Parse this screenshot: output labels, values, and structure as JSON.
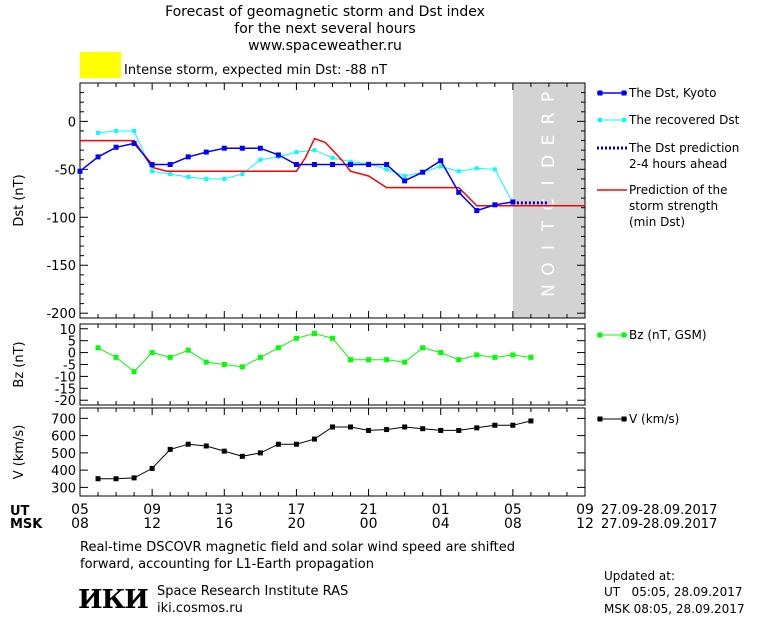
{
  "header": {
    "title_line1": "Forecast of geomagnetic storm and Dst index",
    "title_line2": "for the next several hours",
    "title_line3": "www.spaceweather.ru",
    "storm_level_color": "#ffff00",
    "storm_text": "Intense storm, expected min Dst: -88 nT"
  },
  "prediction_label": "PREDICTION",
  "legend": {
    "dst_kyoto": "The Dst, Kyoto",
    "dst_recovered": "The recovered Dst",
    "dst_prediction_1": "The Dst prediction",
    "dst_prediction_2": "2-4 hours ahead",
    "min_dst_1": "Prediction of the",
    "min_dst_2": "storm strength",
    "min_dst_3": "(min Dst)",
    "bz": "Bz (nT, GSM)",
    "v": "V (km/s)"
  },
  "colors": {
    "dst_kyoto": "#0000ff",
    "dst_recovered": "#00ffff",
    "dst_prediction": "#0000cc",
    "min_dst": "#ff0000",
    "bz": "#00ff00",
    "v": "#000000",
    "prediction_band": "#d3d3d3"
  },
  "time_axis": {
    "ut_label": "UT",
    "msk_label": "MSK",
    "ut_ticks": [
      "05",
      "09",
      "13",
      "17",
      "21",
      "01",
      "05",
      "09"
    ],
    "msk_ticks": [
      "08",
      "12",
      "16",
      "20",
      "00",
      "04",
      "08",
      "12"
    ],
    "ut_dates": "27.09-28.09.2017",
    "msk_dates": "27.09-28.09.2017"
  },
  "footer": {
    "note_line1": "Real-time DSCOVR magnetic field and solar wind speed are shifted",
    "note_line2": "forward, accounting for L1-Earth propagation",
    "logo_text": "ИКИ",
    "institute": "Space Research Institute RAS",
    "site": "iki.cosmos.ru",
    "updated_label": "Updated at:",
    "updated_ut": "UT   05:05, 28.09.2017",
    "updated_msk": "MSK 08:05, 28.09.2017"
  },
  "chart_data": [
    {
      "type": "line",
      "ylabel": "Dst (nT)",
      "xlim": [
        5,
        33
      ],
      "ylim": [
        -205,
        40
      ],
      "yticks": [
        0,
        -50,
        -100,
        -150,
        -200
      ],
      "prediction_start": 29,
      "series": [
        {
          "name": "The Dst, Kyoto",
          "x": [
            5,
            6,
            7,
            8,
            9,
            10,
            11,
            12,
            13,
            14,
            15,
            16,
            17,
            18,
            19,
            20,
            21,
            22,
            23,
            24,
            25,
            26,
            27,
            28,
            29
          ],
          "y": [
            -52,
            -37,
            -27,
            -23,
            -45,
            -45,
            -37,
            -32,
            -28,
            -28,
            -28,
            -35,
            -45,
            -45,
            -45,
            -45,
            -45,
            -45,
            -62,
            -53,
            -41,
            -74,
            -93,
            -87,
            -84
          ]
        },
        {
          "name": "The recovered Dst",
          "x": [
            6,
            7,
            8,
            9,
            10,
            11,
            12,
            13,
            14,
            15,
            16,
            17,
            18,
            19,
            20,
            21,
            22,
            23,
            24,
            25,
            26,
            27,
            28,
            29
          ],
          "y": [
            -12,
            -10,
            -10,
            -52,
            -55,
            -58,
            -60,
            -60,
            -55,
            -40,
            -37,
            -32,
            -30,
            -38,
            -42,
            -44,
            -50,
            -57,
            -53,
            -47,
            -52,
            -49,
            -50,
            -85
          ]
        },
        {
          "name": "The Dst prediction",
          "x": [
            29,
            30,
            31
          ],
          "y": [
            -85,
            -85,
            -85
          ]
        },
        {
          "name": "Prediction of the storm strength",
          "x": [
            5,
            8,
            9,
            9.8,
            17,
            17.5,
            18,
            18.6,
            19,
            19.5,
            20,
            21,
            22,
            23,
            24,
            25,
            26,
            27,
            28,
            29,
            33
          ],
          "y": [
            -20,
            -20,
            -48,
            -52,
            -52,
            -38,
            -18,
            -22,
            -30,
            -40,
            -52,
            -57,
            -69,
            -69,
            -69,
            -69,
            -69,
            -88,
            -88,
            -88,
            -88
          ]
        }
      ]
    },
    {
      "type": "line",
      "ylabel": "Bz (nT)",
      "xlim": [
        5,
        33
      ],
      "ylim": [
        -22,
        12
      ],
      "yticks": [
        10,
        5,
        0,
        -5,
        -10,
        -15,
        -20
      ],
      "ytick_labels": [
        "10",
        "5",
        "0",
        "-5",
        "-10",
        "-15",
        "-20"
      ],
      "series": [
        {
          "name": "Bz (nT, GSM)",
          "x": [
            6,
            7,
            8,
            9,
            10,
            11,
            12,
            13,
            14,
            15,
            16,
            17,
            18,
            19,
            20,
            21,
            22,
            23,
            24,
            25,
            26,
            27,
            28,
            29,
            30
          ],
          "y": [
            2,
            -2,
            -8,
            0,
            -2,
            1,
            -4,
            -5,
            -6,
            -2,
            2,
            6,
            8,
            6,
            -3,
            -3,
            -3,
            -4,
            2,
            0,
            -3,
            -1,
            -2,
            -1,
            -2
          ]
        }
      ]
    },
    {
      "type": "line",
      "ylabel": "V (km/s)",
      "xlim": [
        5,
        33
      ],
      "ylim": [
        250,
        760
      ],
      "yticks": [
        300,
        400,
        500,
        600,
        700
      ],
      "series": [
        {
          "name": "V (km/s)",
          "x": [
            6,
            7,
            8,
            9,
            10,
            11,
            12,
            13,
            14,
            15,
            16,
            17,
            18,
            19,
            20,
            21,
            22,
            23,
            24,
            25,
            26,
            27,
            28,
            29,
            30
          ],
          "y": [
            350,
            350,
            355,
            410,
            520,
            550,
            540,
            510,
            480,
            500,
            550,
            550,
            580,
            650,
            650,
            630,
            635,
            650,
            640,
            630,
            630,
            645,
            660,
            660,
            685
          ]
        }
      ]
    }
  ]
}
